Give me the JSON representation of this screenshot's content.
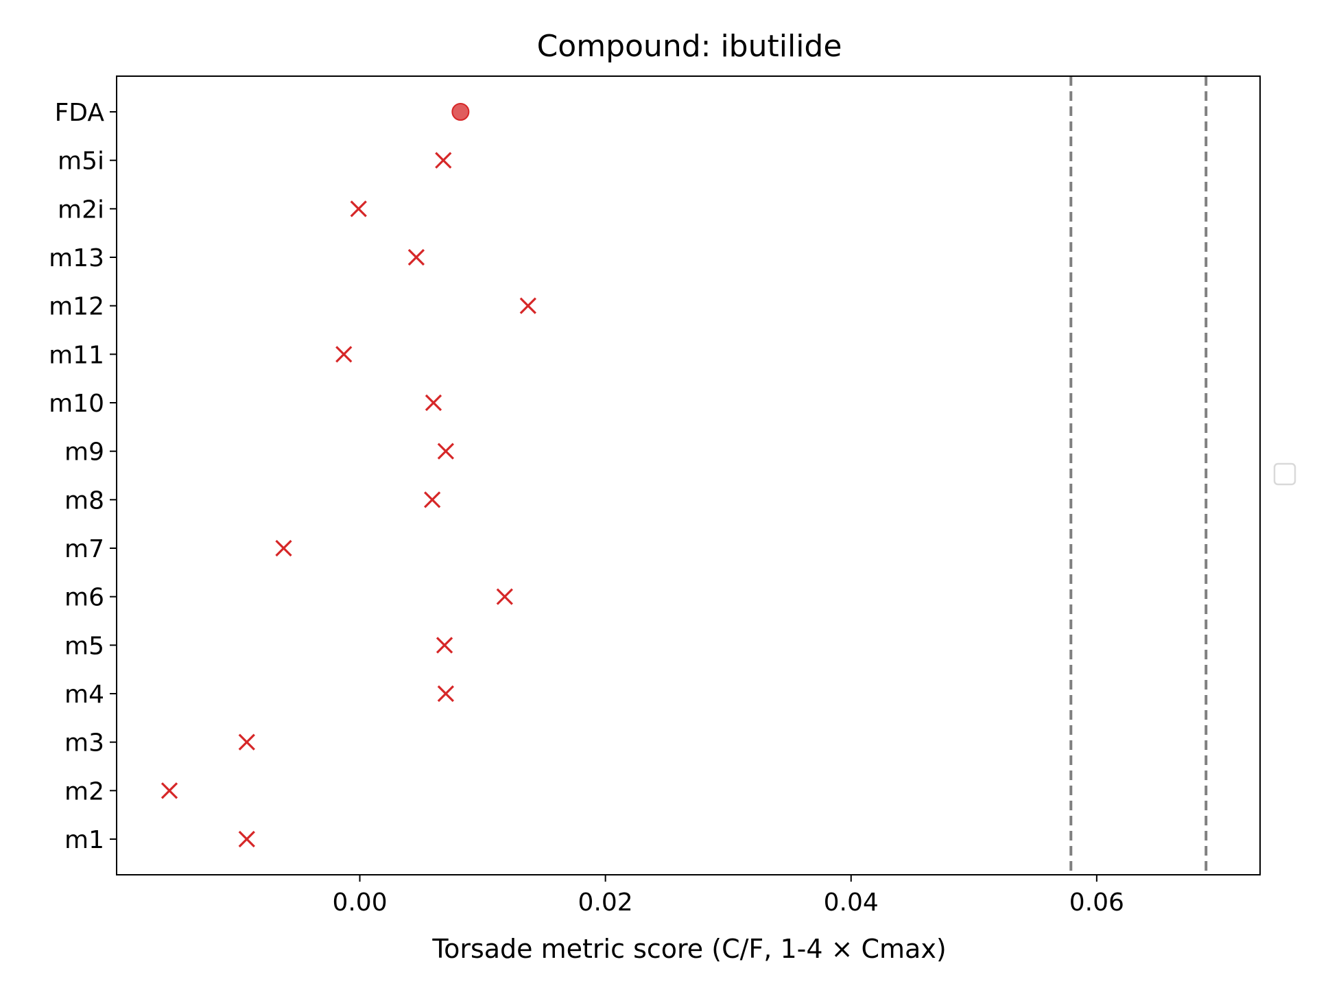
{
  "chart_data": {
    "type": "scatter",
    "title": "Compound: ibutilide",
    "xlabel": "Torsade metric score (C/F, 1-4 × Cmax)",
    "ylabel": "",
    "xlim": [
      -0.0198,
      0.0733
    ],
    "xticks": [
      0.0,
      0.02,
      0.04,
      0.06
    ],
    "xtick_labels": [
      "0.00",
      "0.02",
      "0.04",
      "0.06"
    ],
    "categories": [
      "m1",
      "m2",
      "m3",
      "m4",
      "m5",
      "m6",
      "m7",
      "m8",
      "m9",
      "m10",
      "m11",
      "m12",
      "m13",
      "m2i",
      "m5i",
      "FDA"
    ],
    "points": [
      {
        "label": "m1",
        "x": -0.0092,
        "marker": "x"
      },
      {
        "label": "m2",
        "x": -0.0155,
        "marker": "x"
      },
      {
        "label": "m3",
        "x": -0.0092,
        "marker": "x"
      },
      {
        "label": "m4",
        "x": 0.007,
        "marker": "x"
      },
      {
        "label": "m5",
        "x": 0.0069,
        "marker": "x"
      },
      {
        "label": "m6",
        "x": 0.0118,
        "marker": "x"
      },
      {
        "label": "m7",
        "x": -0.0062,
        "marker": "x"
      },
      {
        "label": "m8",
        "x": 0.0059,
        "marker": "x"
      },
      {
        "label": "m9",
        "x": 0.007,
        "marker": "x"
      },
      {
        "label": "m10",
        "x": 0.006,
        "marker": "x"
      },
      {
        "label": "m11",
        "x": -0.0013,
        "marker": "x"
      },
      {
        "label": "m12",
        "x": 0.0137,
        "marker": "x"
      },
      {
        "label": "m13",
        "x": 0.0046,
        "marker": "x"
      },
      {
        "label": "m2i",
        "x": -0.0001,
        "marker": "x"
      },
      {
        "label": "m5i",
        "x": 0.0068,
        "marker": "x"
      },
      {
        "label": "FDA",
        "x": 0.0082,
        "marker": "circle"
      }
    ],
    "thresholds": [
      0.0579,
      0.0689
    ],
    "grid": false,
    "legend": "empty, right of plot",
    "colors": {
      "marker": "#d62728",
      "threshold": "#808080",
      "axes": "#000000"
    }
  }
}
